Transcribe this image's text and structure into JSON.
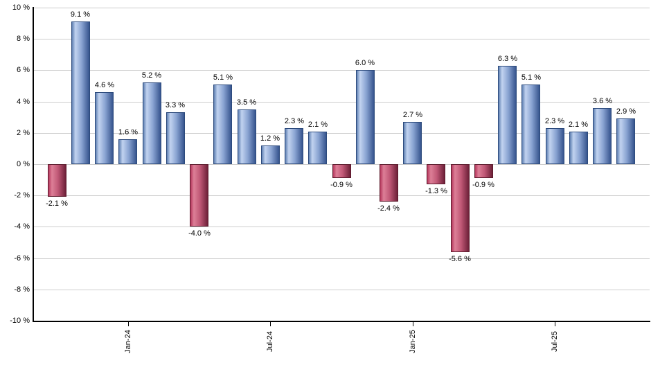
{
  "chart_data": {
    "type": "bar",
    "title": "",
    "xlabel": "",
    "ylabel": "",
    "ylim": [
      -10,
      10
    ],
    "grid": true,
    "legend": "none",
    "values": [
      -2.1,
      9.1,
      4.6,
      1.6,
      5.2,
      3.3,
      -4.0,
      5.1,
      3.5,
      1.2,
      2.3,
      2.1,
      -0.9,
      6.0,
      -2.4,
      2.7,
      -1.3,
      -5.6,
      -0.9,
      6.3,
      5.1,
      2.3,
      2.1,
      3.6,
      2.9
    ],
    "bar_labels": [
      "-2.1 %",
      "9.1 %",
      "4.6 %",
      "1.6 %",
      "5.2 %",
      "3.3 %",
      "-4.0 %",
      "5.1 %",
      "3.5 %",
      "1.2 %",
      "2.3 %",
      "2.1 %",
      "-0.9 %",
      "6.0 %",
      "-2.4 %",
      "2.7 %",
      "-1.3 %",
      "-5.6 %",
      "-0.9 %",
      "6.3 %",
      "5.1 %",
      "2.3 %",
      "2.1 %",
      "3.6 %",
      "2.9 %"
    ],
    "y_ticks": [
      {
        "value": 10,
        "label": "10 %"
      },
      {
        "value": 8,
        "label": "8 %"
      },
      {
        "value": 6,
        "label": "6 %"
      },
      {
        "value": 4,
        "label": "4 %"
      },
      {
        "value": 2,
        "label": "2 %"
      },
      {
        "value": 0,
        "label": "0 %"
      },
      {
        "value": -2,
        "label": "-2 %"
      },
      {
        "value": -4,
        "label": "-4 %"
      },
      {
        "value": -6,
        "label": "-6 %"
      },
      {
        "value": -8,
        "label": "-8 %"
      },
      {
        "value": -10,
        "label": "-10 %"
      }
    ],
    "x_ticks": [
      {
        "label": "Jan-24",
        "bar_index": 3
      },
      {
        "label": "Jul-24",
        "bar_index": 9
      },
      {
        "label": "Jan-25",
        "bar_index": 15
      },
      {
        "label": "Jul-25",
        "bar_index": 21
      }
    ],
    "colors": {
      "positive": {
        "edge": "#5f80b2",
        "light": "#c2d3f0",
        "mid": "#8aa4d2",
        "dark": "#36548e",
        "border": "#2c4a7c"
      },
      "negative": {
        "edge": "#b5375c",
        "light": "#dd7f97",
        "mid": "#c05876",
        "dark": "#6d2038",
        "border": "#5c1a2c"
      },
      "grid": "#cccccc",
      "axis": "#000000",
      "text": "#000000",
      "background": "#ffffff"
    }
  }
}
